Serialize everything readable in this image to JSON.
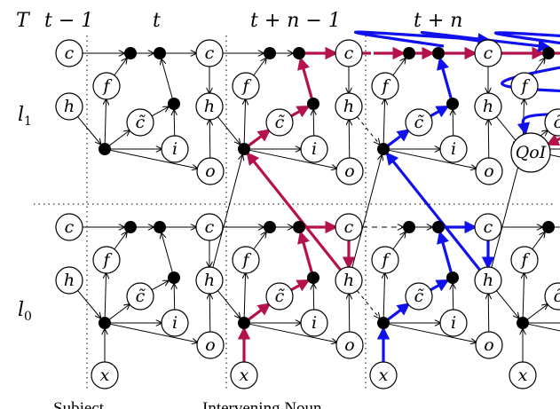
{
  "headers": {
    "axis": "T",
    "col1": "t − 1",
    "col2": "t",
    "col3": "t + n − 1",
    "col4": "t + n"
  },
  "layers": {
    "l1": "l",
    "l1_sub": "1",
    "l0": "l",
    "l0_sub": "0"
  },
  "nodes": {
    "c": "c",
    "f": "f",
    "h": "h",
    "ct": "c̃",
    "i": "i",
    "o": "o",
    "x": "x",
    "qoi": "QoI"
  },
  "bottom_labels": {
    "subject": "Subject",
    "intervening": "Intervening Noun"
  },
  "colors": {
    "red_path": "#b5124d",
    "blue_path": "#1111ee",
    "edge": "#000000"
  }
}
